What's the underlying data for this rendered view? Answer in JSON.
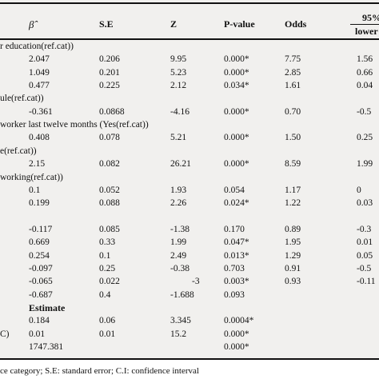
{
  "header": {
    "beta": "β̂",
    "se": "S.E",
    "z": "Z",
    "p": "P-value",
    "odds": "Odds",
    "ci": "95%",
    "lower": "lower"
  },
  "rows": [
    {
      "kind": "group",
      "label": "r education(ref.cat))"
    },
    {
      "kind": "data",
      "beta": "2.047",
      "se": "0.206",
      "z": "9.95",
      "p": "0.000*",
      "odds": "7.75",
      "lower": "1.56"
    },
    {
      "kind": "data",
      "beta": "1.049",
      "se": "0.201",
      "z": "5.23",
      "p": "0.000*",
      "odds": "2.85",
      "lower": "0.66"
    },
    {
      "kind": "data",
      "beta": "0.477",
      "se": "0.225",
      "z": "2.12",
      "p": "0.034*",
      "odds": "1.61",
      "lower": "0.04"
    },
    {
      "kind": "group",
      "label": "ule(ref.cat))"
    },
    {
      "kind": "data",
      "beta": "-0.361",
      "se": "0.0868",
      "z": "-4.16",
      "p": "0.000*",
      "odds": "0.70",
      "lower": "-0.5"
    },
    {
      "kind": "group",
      "label": "worker last twelve months (Yes(ref.cat))"
    },
    {
      "kind": "data",
      "beta": "0.408",
      "se": "0.078",
      "z": "5.21",
      "p": "0.000*",
      "odds": "1.50",
      "lower": "0.25"
    },
    {
      "kind": "group",
      "label": "e(ref.cat))"
    },
    {
      "kind": "data",
      "beta": "2.15",
      "se": "0.082",
      "z": "26.21",
      "p": "0.000*",
      "odds": "8.59",
      "lower": "1.99"
    },
    {
      "kind": "group",
      "label": "working(ref.cat))"
    },
    {
      "kind": "data",
      "beta": "0.1",
      "se": "0.052",
      "z": "1.93",
      "p": "0.054",
      "odds": "1.17",
      "lower": "0"
    },
    {
      "kind": "data",
      "beta": "0.199",
      "se": "0.088",
      "z": "2.26",
      "p": "0.024*",
      "odds": "1.22",
      "lower": "0.03"
    },
    {
      "kind": "group",
      "label": ""
    },
    {
      "kind": "data",
      "beta": "-0.117",
      "se": "0.085",
      "z": "-1.38",
      "p": "0.170",
      "odds": "0.89",
      "lower": "-0.3"
    },
    {
      "kind": "data",
      "beta": "0.669",
      "se": "0.33",
      "z": "1.99",
      "p": "0.047*",
      "odds": "1.95",
      "lower": "0.01"
    },
    {
      "kind": "data",
      "beta": "0.254",
      "se": "0.1",
      "z": "2.49",
      "p": "0.013*",
      "odds": "1.29",
      "lower": "0.05"
    },
    {
      "kind": "data",
      "beta": "-0.097",
      "se": "0.25",
      "z": "-0.38",
      "p": "0.703",
      "odds": "0.91",
      "lower": "-0.5"
    },
    {
      "kind": "data",
      "beta": "-0.065",
      "se": "0.022",
      "z": "-3",
      "p": "0.003*",
      "odds": "0.93",
      "lower": "-0.11"
    },
    {
      "kind": "data",
      "beta": "-0.687",
      "se": "0.4",
      "z": "-1.688",
      "p": "0.093",
      "odds": "",
      "lower": ""
    },
    {
      "kind": "estimate",
      "label": "Estimate"
    },
    {
      "kind": "data",
      "beta": "0.184",
      "se": "0.06",
      "z": "3.345",
      "p": "0.0004*",
      "odds": "",
      "lower": ""
    },
    {
      "kind": "data",
      "stub": "C)",
      "beta": "0.01",
      "se": "0.01",
      "z": "15.2",
      "p": "0.000*",
      "odds": "",
      "lower": ""
    },
    {
      "kind": "data",
      "beta": "1747.381",
      "se": "",
      "z": "",
      "p": "0.000*",
      "odds": "",
      "lower": ""
    }
  ],
  "footnote": "ce category; S.E: standard error; C.I: confidence interval"
}
